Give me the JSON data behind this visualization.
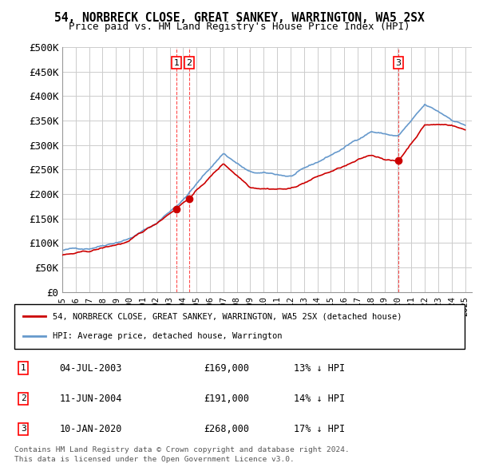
{
  "title": "54, NORBRECK CLOSE, GREAT SANKEY, WARRINGTON, WA5 2SX",
  "subtitle": "Price paid vs. HM Land Registry's House Price Index (HPI)",
  "ylabel": "",
  "ylim": [
    0,
    500000
  ],
  "yticks": [
    0,
    50000,
    100000,
    150000,
    200000,
    250000,
    300000,
    350000,
    400000,
    450000,
    500000
  ],
  "ytick_labels": [
    "£0",
    "£50K",
    "£100K",
    "£150K",
    "£200K",
    "£250K",
    "£300K",
    "£350K",
    "£400K",
    "£450K",
    "£500K"
  ],
  "xlim_start": 1995.0,
  "xlim_end": 2025.5,
  "transactions": [
    {
      "label": "1",
      "date": "04-JUL-2003",
      "price": 169000,
      "year": 2003.5,
      "pct": "13%",
      "direction": "↓"
    },
    {
      "label": "2",
      "date": "11-JUN-2004",
      "price": 191000,
      "year": 2004.45,
      "pct": "14%",
      "direction": "↓"
    },
    {
      "label": "3",
      "date": "10-JAN-2020",
      "price": 268000,
      "year": 2020.03,
      "pct": "17%",
      "direction": "↓"
    }
  ],
  "legend_house": "54, NORBRECK CLOSE, GREAT SANKEY, WARRINGTON, WA5 2SX (detached house)",
  "legend_hpi": "HPI: Average price, detached house, Warrington",
  "footer1": "Contains HM Land Registry data © Crown copyright and database right 2024.",
  "footer2": "This data is licensed under the Open Government Licence v3.0.",
  "line_color_house": "#cc0000",
  "line_color_hpi": "#6699cc",
  "bg_color": "#ffffff",
  "grid_color": "#cccccc"
}
